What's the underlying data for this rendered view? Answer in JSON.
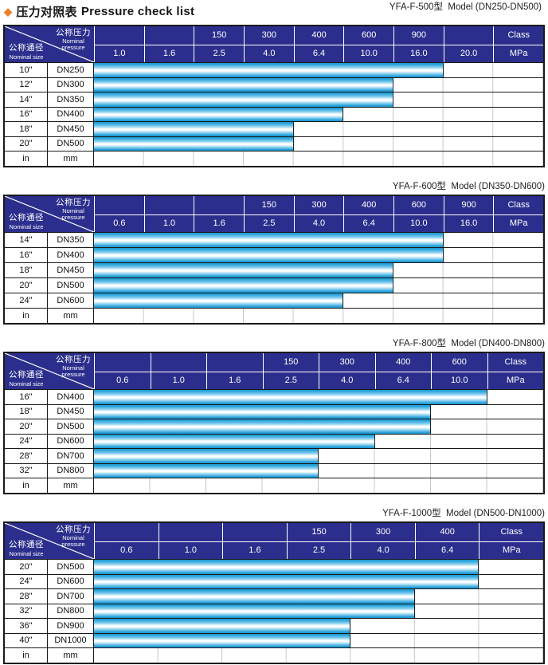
{
  "page_title": {
    "diamond_icon": "◆",
    "zh": "压力对照表",
    "en": "Pressure check list"
  },
  "diagonal_header": {
    "pressure_zh": "公称压力",
    "pressure_en_line1": "Nominal",
    "pressure_en_line2": "pressure",
    "size_zh": "公称通径",
    "size_en": "Nominal size"
  },
  "unit_row": {
    "inch": "in",
    "mm": "mm"
  },
  "colors": {
    "header_navy": "#2B2E8C",
    "bar_cyan": "#2AA5DC",
    "bar_highlight": "#FFFFFF",
    "diamond_orange": "#EE7D23",
    "grid_line": "#C8C8C8",
    "border_dark": "#1A1A1A"
  },
  "tables": [
    {
      "model_label": "YFA-F-500型  Model (DN250-DN500)",
      "class_row": [
        "",
        "",
        "150",
        "300",
        "400",
        "600",
        "900",
        "",
        "Class"
      ],
      "mpa_row": [
        "1.0",
        "1.6",
        "2.5",
        "4.0",
        "6.4",
        "10.0",
        "16.0",
        "20.0",
        "MPa"
      ],
      "rows": [
        {
          "inch": "10\"",
          "dn": "DN250",
          "bar_cols": 7,
          "max_mpa": 16.0
        },
        {
          "inch": "12\"",
          "dn": "DN300",
          "bar_cols": 6,
          "max_mpa": 10.0
        },
        {
          "inch": "14\"",
          "dn": "DN350",
          "bar_cols": 6,
          "max_mpa": 10.0
        },
        {
          "inch": "16\"",
          "dn": "DN400",
          "bar_cols": 5,
          "max_mpa": 6.4
        },
        {
          "inch": "18\"",
          "dn": "DN450",
          "bar_cols": 4,
          "max_mpa": 4.0
        },
        {
          "inch": "20\"",
          "dn": "DN500",
          "bar_cols": 4,
          "max_mpa": 4.0
        }
      ]
    },
    {
      "model_label": "YFA-F-600型  Model (DN350-DN600)",
      "class_row": [
        "",
        "",
        "",
        "150",
        "300",
        "400",
        "600",
        "900",
        "Class"
      ],
      "mpa_row": [
        "0.6",
        "1.0",
        "1.6",
        "2.5",
        "4.0",
        "6.4",
        "10.0",
        "16.0",
        "MPa"
      ],
      "rows": [
        {
          "inch": "14\"",
          "dn": "DN350",
          "bar_cols": 7,
          "max_mpa": 10.0
        },
        {
          "inch": "16\"",
          "dn": "DN400",
          "bar_cols": 7,
          "max_mpa": 10.0
        },
        {
          "inch": "18\"",
          "dn": "DN450",
          "bar_cols": 6,
          "max_mpa": 6.4
        },
        {
          "inch": "20\"",
          "dn": "DN500",
          "bar_cols": 6,
          "max_mpa": 6.4
        },
        {
          "inch": "24\"",
          "dn": "DN600",
          "bar_cols": 5,
          "max_mpa": 4.0
        }
      ]
    },
    {
      "model_label": "YFA-F-800型  Model (DN400-DN800)",
      "class_row": [
        "",
        "",
        "",
        "150",
        "300",
        "400",
        "600",
        "Class"
      ],
      "mpa_row": [
        "0.6",
        "1.0",
        "1.6",
        "2.5",
        "4.0",
        "6.4",
        "10.0",
        "MPa"
      ],
      "rows": [
        {
          "inch": "16\"",
          "dn": "DN400",
          "bar_cols": 7,
          "max_mpa": 10.0
        },
        {
          "inch": "18\"",
          "dn": "DN450",
          "bar_cols": 6,
          "max_mpa": 6.4
        },
        {
          "inch": "20\"",
          "dn": "DN500",
          "bar_cols": 6,
          "max_mpa": 6.4
        },
        {
          "inch": "24\"",
          "dn": "DN600",
          "bar_cols": 5,
          "max_mpa": 4.0
        },
        {
          "inch": "28\"",
          "dn": "DN700",
          "bar_cols": 4,
          "max_mpa": 2.5
        },
        {
          "inch": "32\"",
          "dn": "DN800",
          "bar_cols": 4,
          "max_mpa": 2.5
        }
      ]
    },
    {
      "model_label": "YFA-F-1000型  Model (DN500-DN1000)",
      "class_row": [
        "",
        "",
        "",
        "150",
        "300",
        "400",
        "Class"
      ],
      "mpa_row": [
        "0.6",
        "1.0",
        "1.6",
        "2.5",
        "4.0",
        "6.4",
        "MPa"
      ],
      "rows": [
        {
          "inch": "20\"",
          "dn": "DN500",
          "bar_cols": 6,
          "max_mpa": 6.4
        },
        {
          "inch": "24\"",
          "dn": "DN600",
          "bar_cols": 6,
          "max_mpa": 6.4
        },
        {
          "inch": "28\"",
          "dn": "DN700",
          "bar_cols": 5,
          "max_mpa": 4.0
        },
        {
          "inch": "32\"",
          "dn": "DN800",
          "bar_cols": 5,
          "max_mpa": 4.0
        },
        {
          "inch": "36\"",
          "dn": "DN900",
          "bar_cols": 4,
          "max_mpa": 2.5
        },
        {
          "inch": "40\"",
          "dn": "DN1000",
          "bar_cols": 4,
          "max_mpa": 2.5
        }
      ]
    }
  ]
}
